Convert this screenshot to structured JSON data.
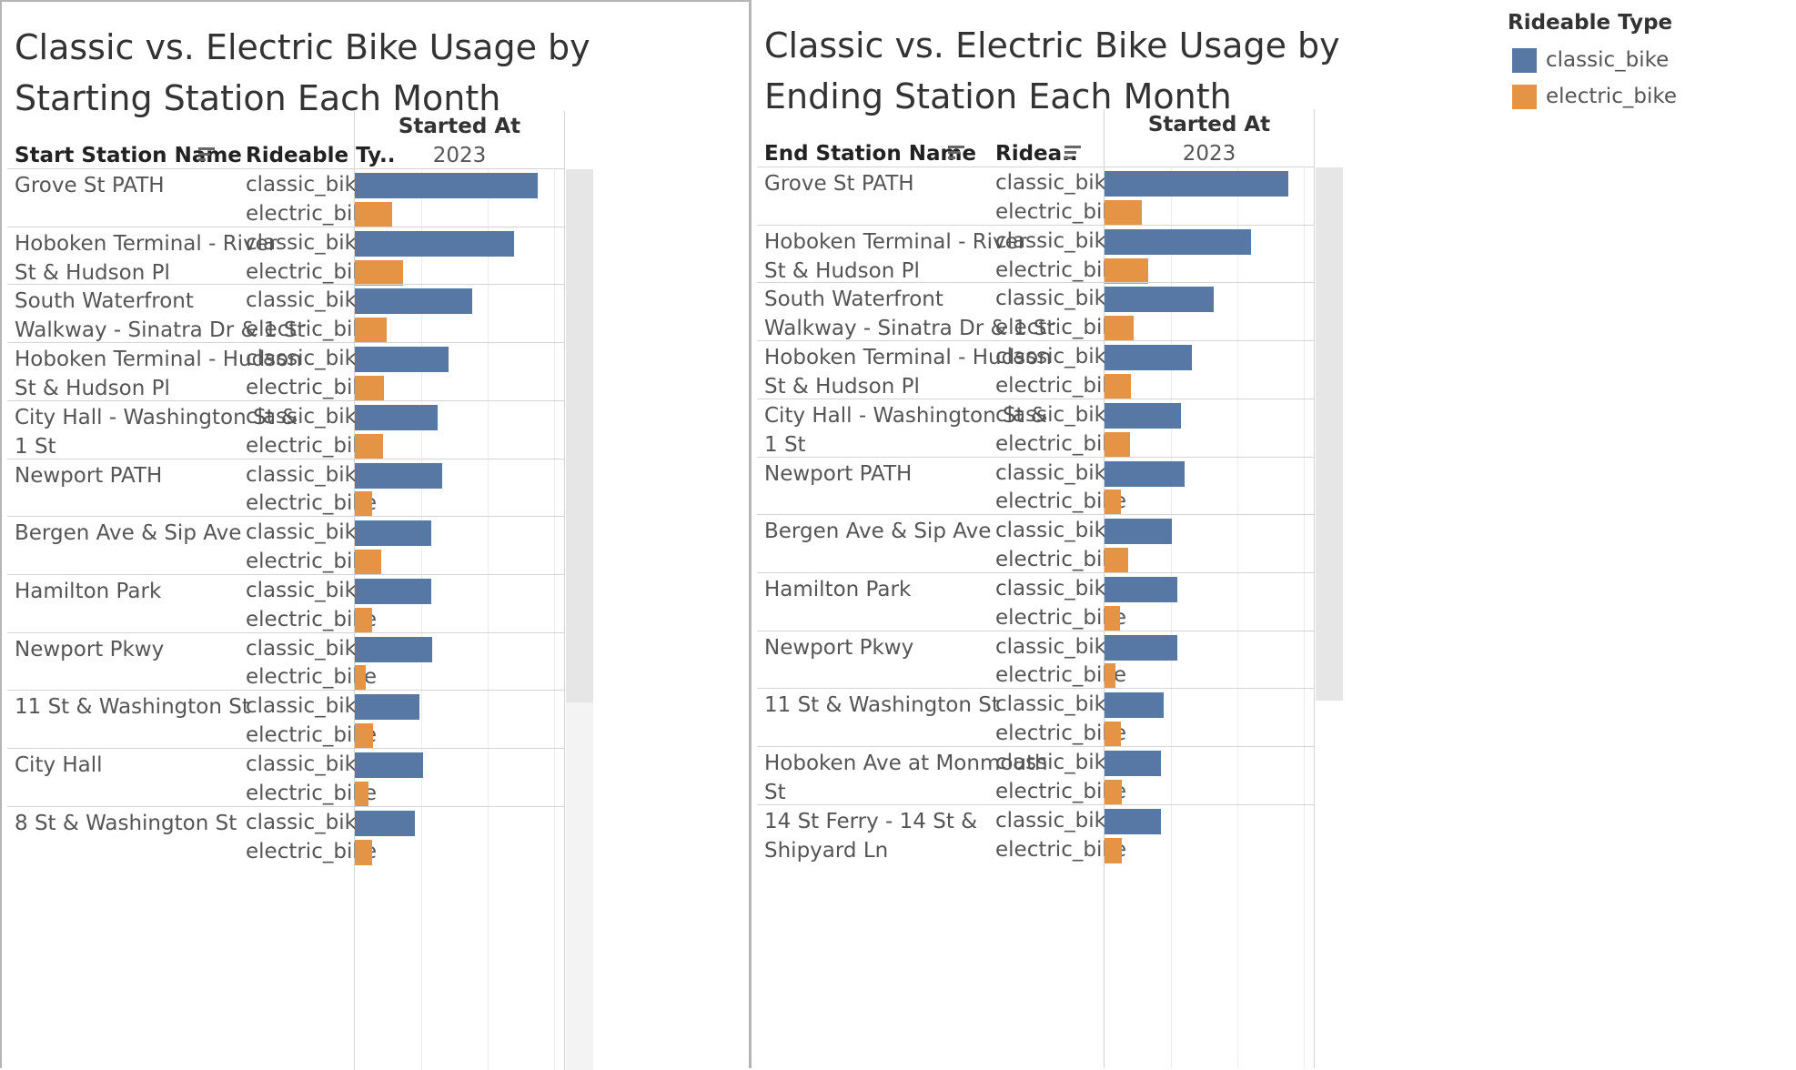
{
  "colors": {
    "classic_bike": "#5778a4",
    "electric_bike": "#e49444"
  },
  "legend": {
    "title": "Rideable Type",
    "items": [
      {
        "label": "classic_bike",
        "color": "#5778a4"
      },
      {
        "label": "electric_bike",
        "color": "#e49444"
      }
    ]
  },
  "chart_data": [
    {
      "type": "bar",
      "orientation": "horizontal",
      "title_lines": [
        "Classic vs. Electric Bike Usage by",
        "Starting Station Each Month"
      ],
      "row_header": "Start Station Name",
      "type_header": "Rideable Ty..",
      "column_title": "Started At",
      "column_year": "2023",
      "x_max": 3150,
      "stations": [
        {
          "name_lines": [
            "Grove St PATH"
          ],
          "values": {
            "classic_bike": 2750,
            "electric_bike": 560
          }
        },
        {
          "name_lines": [
            "Hoboken Terminal - River",
            "St & Hudson Pl"
          ],
          "values": {
            "classic_bike": 2390,
            "electric_bike": 720
          }
        },
        {
          "name_lines": [
            "South Waterfront",
            "Walkway - Sinatra Dr & 1 St"
          ],
          "values": {
            "classic_bike": 1770,
            "electric_bike": 480
          }
        },
        {
          "name_lines": [
            "Hoboken Terminal - Hudson",
            "St & Hudson Pl"
          ],
          "values": {
            "classic_bike": 1410,
            "electric_bike": 440
          }
        },
        {
          "name_lines": [
            "City Hall - Washington St &",
            "1 St"
          ],
          "values": {
            "classic_bike": 1250,
            "electric_bike": 420
          }
        },
        {
          "name_lines": [
            "Newport PATH"
          ],
          "values": {
            "classic_bike": 1310,
            "electric_bike": 260
          }
        },
        {
          "name_lines": [
            "Bergen Ave & Sip Ave"
          ],
          "values": {
            "classic_bike": 1150,
            "electric_bike": 400
          }
        },
        {
          "name_lines": [
            "Hamilton Park"
          ],
          "values": {
            "classic_bike": 1150,
            "electric_bike": 260
          }
        },
        {
          "name_lines": [
            "Newport Pkwy"
          ],
          "values": {
            "classic_bike": 1170,
            "electric_bike": 160
          }
        },
        {
          "name_lines": [
            "11 St & Washington St"
          ],
          "values": {
            "classic_bike": 970,
            "electric_bike": 280
          }
        },
        {
          "name_lines": [
            "City Hall"
          ],
          "values": {
            "classic_bike": 1030,
            "electric_bike": 200
          }
        },
        {
          "name_lines": [
            "8 St & Washington St"
          ],
          "values": {
            "classic_bike": 910,
            "electric_bike": 260
          }
        }
      ]
    },
    {
      "type": "bar",
      "orientation": "horizontal",
      "title_lines": [
        "Classic vs. Electric Bike Usage by",
        "Ending Station Each Month"
      ],
      "row_header": "End Station Name",
      "type_header": "Ridea..",
      "column_title": "Started At",
      "column_year": "2023",
      "x_max": 3150,
      "stations": [
        {
          "name_lines": [
            "Grove St PATH"
          ],
          "values": {
            "classic_bike": 2760,
            "electric_bike": 560
          }
        },
        {
          "name_lines": [
            "Hoboken Terminal - River",
            "St & Hudson Pl"
          ],
          "values": {
            "classic_bike": 2200,
            "electric_bike": 660
          }
        },
        {
          "name_lines": [
            "South Waterfront",
            "Walkway - Sinatra Dr & 1 St"
          ],
          "values": {
            "classic_bike": 1650,
            "electric_bike": 440
          }
        },
        {
          "name_lines": [
            "Hoboken Terminal - Hudson",
            "St & Hudson Pl"
          ],
          "values": {
            "classic_bike": 1310,
            "electric_bike": 400
          }
        },
        {
          "name_lines": [
            "City Hall - Washington St &",
            "1 St"
          ],
          "values": {
            "classic_bike": 1150,
            "electric_bike": 380
          }
        },
        {
          "name_lines": [
            "Newport PATH"
          ],
          "values": {
            "classic_bike": 1210,
            "electric_bike": 240
          }
        },
        {
          "name_lines": [
            "Bergen Ave & Sip Ave"
          ],
          "values": {
            "classic_bike": 1010,
            "electric_bike": 360
          }
        },
        {
          "name_lines": [
            "Hamilton Park"
          ],
          "values": {
            "classic_bike": 1090,
            "electric_bike": 230
          }
        },
        {
          "name_lines": [
            "Newport Pkwy"
          ],
          "values": {
            "classic_bike": 1090,
            "electric_bike": 160
          }
        },
        {
          "name_lines": [
            "11 St & Washington St"
          ],
          "values": {
            "classic_bike": 890,
            "electric_bike": 250
          }
        },
        {
          "name_lines": [
            "Hoboken Ave at Monmouth",
            "St"
          ],
          "values": {
            "classic_bike": 850,
            "electric_bike": 260
          }
        },
        {
          "name_lines": [
            "14 St Ferry - 14 St &",
            "Shipyard Ln"
          ],
          "values": {
            "classic_bike": 850,
            "electric_bike": 260
          }
        }
      ]
    }
  ]
}
